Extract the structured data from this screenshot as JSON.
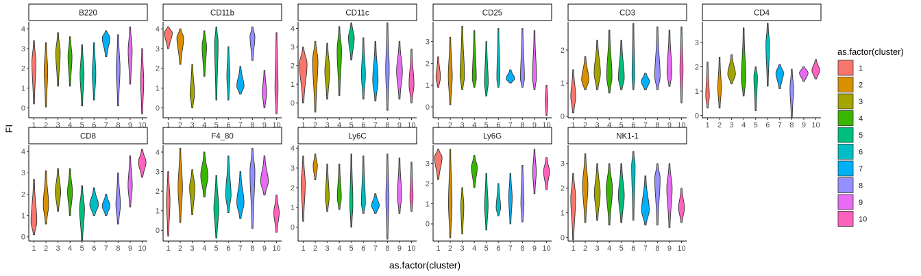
{
  "chart_data": {
    "type": "violin",
    "ylabel": "FI",
    "xlabel": "as.factor(cluster)",
    "categories": [
      "1",
      "2",
      "3",
      "4",
      "5",
      "6",
      "7",
      "8",
      "9",
      "10"
    ],
    "legend": {
      "title": "as.factor(cluster)",
      "position": "right",
      "colors": [
        "#F8766D",
        "#D89000",
        "#A3A500",
        "#39B600",
        "#00BF7D",
        "#00BFC4",
        "#00B0F6",
        "#9590FF",
        "#E76BF3",
        "#FF62BC"
      ]
    },
    "panels": [
      {
        "title": "B220",
        "ylim": [
          -0.5,
          4.35
        ],
        "yticks": [
          0,
          1,
          2,
          3,
          4
        ],
        "violins": [
          [
            0.2,
            3.4,
            2.3,
            0.14
          ],
          [
            0.05,
            3.3,
            1.9,
            0.12
          ],
          [
            1.1,
            3.8,
            2.8,
            0.16
          ],
          [
            1.1,
            3.6,
            2.6,
            0.14
          ],
          [
            0.1,
            3.2,
            1.7,
            0.14
          ],
          [
            0.4,
            3.3,
            1.7,
            0.12
          ],
          [
            2.6,
            3.9,
            3.55,
            0.3
          ],
          [
            0.1,
            3.7,
            2.0,
            0.13
          ],
          [
            1.2,
            4.1,
            2.9,
            0.14
          ],
          [
            -0.3,
            3.0,
            1.3,
            0.1
          ]
        ]
      },
      {
        "title": "CD11b",
        "ylim": [
          -0.5,
          4.35
        ],
        "yticks": [
          0,
          1,
          2,
          3,
          4
        ],
        "violins": [
          [
            3.0,
            4.1,
            3.8,
            0.32
          ],
          [
            2.2,
            4.0,
            3.55,
            0.26
          ],
          [
            0.0,
            2.2,
            0.7,
            0.16
          ],
          [
            1.6,
            3.9,
            3.1,
            0.16
          ],
          [
            0.4,
            4.1,
            3.3,
            0.12
          ],
          [
            0.4,
            3.1,
            1.6,
            0.1
          ],
          [
            0.7,
            2.1,
            1.1,
            0.28
          ],
          [
            2.4,
            4.1,
            3.6,
            0.18
          ],
          [
            0.0,
            1.9,
            0.75,
            0.16
          ],
          [
            -0.3,
            3.8,
            1.0,
            0.1
          ]
        ]
      },
      {
        "title": "CD11c",
        "ylim": [
          -0.8,
          4.35
        ],
        "yticks": [
          0,
          1,
          2,
          3,
          4
        ],
        "violins": [
          [
            0.0,
            3.0,
            2.1,
            0.3
          ],
          [
            -0.5,
            3.3,
            2.3,
            0.2
          ],
          [
            0.2,
            3.2,
            1.7,
            0.18
          ],
          [
            0.4,
            4.1,
            2.8,
            0.16
          ],
          [
            2.3,
            4.3,
            3.5,
            0.22
          ],
          [
            0.2,
            3.5,
            1.5,
            0.14
          ],
          [
            0.1,
            3.3,
            1.2,
            0.2
          ],
          [
            -0.4,
            4.3,
            1.8,
            0.12
          ],
          [
            0.2,
            3.3,
            1.7,
            0.22
          ],
          [
            0.0,
            2.9,
            1.0,
            0.18
          ]
        ]
      },
      {
        "title": "CD25",
        "ylim": [
          -0.5,
          3.9
        ],
        "yticks": [
          0,
          1,
          2,
          3
        ],
        "violins": [
          [
            0.9,
            2.3,
            1.35,
            0.16
          ],
          [
            0.1,
            3.2,
            1.4,
            0.14
          ],
          [
            0.8,
            3.7,
            1.4,
            0.16
          ],
          [
            0.9,
            3.5,
            1.3,
            0.14
          ],
          [
            0.5,
            3.0,
            1.1,
            0.13
          ],
          [
            0.9,
            3.6,
            1.3,
            0.1
          ],
          [
            1.1,
            1.7,
            1.3,
            0.34
          ],
          [
            0.9,
            3.6,
            1.3,
            0.14
          ],
          [
            0.8,
            3.5,
            1.35,
            0.14
          ],
          [
            -0.4,
            1.0,
            0.3,
            0.08
          ]
        ]
      },
      {
        "title": "CD3",
        "ylim": [
          -0.05,
          2.85
        ],
        "yticks": [
          0,
          1,
          2
        ],
        "violins": [
          [
            0.1,
            1.4,
            0.6,
            0.18
          ],
          [
            0.8,
            1.8,
            1.1,
            0.28
          ],
          [
            0.8,
            2.3,
            1.3,
            0.24
          ],
          [
            0.7,
            2.6,
            1.2,
            0.2
          ],
          [
            0.8,
            2.3,
            1.15,
            0.22
          ],
          [
            0.8,
            2.8,
            1.2,
            0.08
          ],
          [
            0.8,
            1.3,
            1.05,
            0.32
          ],
          [
            0.8,
            2.7,
            1.2,
            0.2
          ],
          [
            0.9,
            2.6,
            1.3,
            0.18
          ],
          [
            0.4,
            2.7,
            1.4,
            0.1
          ]
        ]
      },
      {
        "title": "CD4",
        "ylim": [
          -0.1,
          3.85
        ],
        "yticks": [
          0,
          1,
          2,
          3
        ],
        "violins": [
          [
            0.3,
            2.2,
            0.8,
            0.12
          ],
          [
            0.3,
            2.4,
            1.1,
            0.12
          ],
          [
            1.3,
            2.5,
            1.7,
            0.3
          ],
          [
            0.8,
            3.6,
            1.5,
            0.16
          ],
          [
            0.2,
            2.0,
            1.6,
            0.12
          ],
          [
            1.2,
            3.8,
            2.9,
            0.12
          ],
          [
            1.1,
            2.1,
            1.75,
            0.3
          ],
          [
            -0.1,
            1.9,
            1.1,
            0.12
          ],
          [
            1.4,
            2.0,
            1.75,
            0.34
          ],
          [
            1.5,
            2.3,
            1.85,
            0.3
          ]
        ]
      },
      {
        "title": "CD8",
        "ylim": [
          -0.2,
          4.3
        ],
        "yticks": [
          0,
          1,
          2,
          3,
          4
        ],
        "violins": [
          [
            0.1,
            2.7,
            0.7,
            0.22
          ],
          [
            0.6,
            3.1,
            1.5,
            0.2
          ],
          [
            1.2,
            3.2,
            2.1,
            0.2
          ],
          [
            1.0,
            3.2,
            2.1,
            0.18
          ],
          [
            -0.2,
            2.4,
            1.3,
            0.18
          ],
          [
            1.0,
            2.3,
            1.5,
            0.34
          ],
          [
            1.0,
            2.0,
            1.45,
            0.3
          ],
          [
            0.6,
            3.0,
            1.5,
            0.16
          ],
          [
            1.4,
            3.8,
            2.4,
            0.15
          ],
          [
            2.8,
            4.1,
            3.5,
            0.3
          ]
        ]
      },
      {
        "title": "F4_80",
        "ylim": [
          -0.55,
          4.35
        ],
        "yticks": [
          0,
          1,
          2,
          3,
          4
        ],
        "violins": [
          [
            -0.3,
            3.0,
            1.5,
            0.12
          ],
          [
            0.4,
            4.2,
            2.2,
            0.16
          ],
          [
            0.8,
            3.1,
            2.2,
            0.2
          ],
          [
            1.7,
            4.0,
            2.8,
            0.28
          ],
          [
            -0.4,
            2.8,
            1.1,
            0.18
          ],
          [
            0.9,
            3.8,
            1.8,
            0.2
          ],
          [
            0.6,
            3.0,
            1.4,
            0.28
          ],
          [
            0.1,
            4.2,
            3.0,
            0.18
          ],
          [
            1.8,
            3.8,
            2.5,
            0.3
          ],
          [
            -0.1,
            1.8,
            0.9,
            0.2
          ]
        ]
      },
      {
        "title": "Ly6C",
        "ylim": [
          -0.7,
          4.15
        ],
        "yticks": [
          0,
          1,
          2,
          3,
          4
        ],
        "violins": [
          [
            0.3,
            3.6,
            2.2,
            0.14
          ],
          [
            2.4,
            3.7,
            3.1,
            0.15
          ],
          [
            0.8,
            3.2,
            1.5,
            0.13
          ],
          [
            0.9,
            3.2,
            1.5,
            0.14
          ],
          [
            0.0,
            3.7,
            1.2,
            0.1
          ],
          [
            0.7,
            3.6,
            1.2,
            0.14
          ],
          [
            0.7,
            1.7,
            1.1,
            0.3
          ],
          [
            -0.6,
            3.7,
            1.5,
            0.1
          ],
          [
            0.7,
            3.5,
            1.6,
            0.15
          ],
          [
            0.8,
            3.3,
            1.5,
            0.1
          ]
        ]
      },
      {
        "title": "Ly6G",
        "ylim": [
          -0.85,
          3.9
        ],
        "yticks": [
          0,
          1,
          2,
          3
        ],
        "violins": [
          [
            2.2,
            3.7,
            3.3,
            0.3
          ],
          [
            -0.7,
            3.7,
            1.0,
            0.12
          ],
          [
            -0.5,
            1.8,
            0.9,
            0.1
          ],
          [
            1.8,
            3.4,
            2.8,
            0.22
          ],
          [
            -0.3,
            2.5,
            0.9,
            0.12
          ],
          [
            0.4,
            2.0,
            0.8,
            0.16
          ],
          [
            0.0,
            2.5,
            1.3,
            0.12
          ],
          [
            0.1,
            2.9,
            1.0,
            0.1
          ],
          [
            1.5,
            3.7,
            2.6,
            0.12
          ],
          [
            1.7,
            3.3,
            2.6,
            0.22
          ]
        ]
      },
      {
        "title": "NK1-1",
        "ylim": [
          -0.15,
          3.75
        ],
        "yticks": [
          0,
          1,
          2,
          3
        ],
        "violins": [
          [
            -0.1,
            2.6,
            1.6,
            0.18
          ],
          [
            0.6,
            3.4,
            2.1,
            0.2
          ],
          [
            0.7,
            3.0,
            1.8,
            0.22
          ],
          [
            0.5,
            3.0,
            2.0,
            0.24
          ],
          [
            0.6,
            3.0,
            1.7,
            0.22
          ],
          [
            0.7,
            3.5,
            2.9,
            0.12
          ],
          [
            0.5,
            2.5,
            1.1,
            0.3
          ],
          [
            0.5,
            3.0,
            2.4,
            0.2
          ],
          [
            0.4,
            3.0,
            2.0,
            0.2
          ],
          [
            0.6,
            2.0,
            1.2,
            0.22
          ]
        ]
      }
    ]
  }
}
